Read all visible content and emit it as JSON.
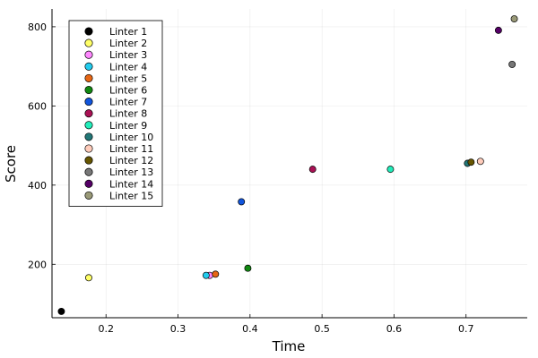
{
  "chart_data": {
    "type": "scatter",
    "title": "",
    "xlabel": "Time",
    "ylabel": "Score",
    "xlim": [
      0.125,
      0.785
    ],
    "ylim": [
      65,
      845
    ],
    "xticks": [
      0.2,
      0.3,
      0.4,
      0.5,
      0.6,
      0.7
    ],
    "xtick_labels": [
      "0.2",
      "0.3",
      "0.4",
      "0.5",
      "0.6",
      "0.7"
    ],
    "yticks": [
      200,
      400,
      600,
      800
    ],
    "ytick_labels": [
      "200",
      "400",
      "600",
      "800"
    ],
    "grid": true,
    "legend_position": "top-left",
    "series": [
      {
        "name": "Linter 1",
        "color": "#000000",
        "x": 0.138,
        "y": 81
      },
      {
        "name": "Linter 2",
        "color": "#ffff66",
        "x": 0.176,
        "y": 166
      },
      {
        "name": "Linter 3",
        "color": "#ff88ff",
        "x": 0.344,
        "y": 172
      },
      {
        "name": "Linter 4",
        "color": "#22ccee",
        "x": 0.339,
        "y": 172
      },
      {
        "name": "Linter 5",
        "color": "#e66614",
        "x": 0.352,
        "y": 175
      },
      {
        "name": "Linter 6",
        "color": "#118811",
        "x": 0.397,
        "y": 190
      },
      {
        "name": "Linter 7",
        "color": "#1155dd",
        "x": 0.388,
        "y": 358
      },
      {
        "name": "Linter 8",
        "color": "#aa1155",
        "x": 0.487,
        "y": 440
      },
      {
        "name": "Linter 9",
        "color": "#22eebb",
        "x": 0.595,
        "y": 440
      },
      {
        "name": "Linter 10",
        "color": "#227777",
        "x": 0.702,
        "y": 455
      },
      {
        "name": "Linter 11",
        "color": "#ffccbb",
        "x": 0.72,
        "y": 460
      },
      {
        "name": "Linter 12",
        "color": "#665500",
        "x": 0.707,
        "y": 458
      },
      {
        "name": "Linter 13",
        "color": "#777777",
        "x": 0.764,
        "y": 705
      },
      {
        "name": "Linter 14",
        "color": "#550066",
        "x": 0.745,
        "y": 791
      },
      {
        "name": "Linter 15",
        "color": "#999977",
        "x": 0.767,
        "y": 820
      }
    ]
  }
}
